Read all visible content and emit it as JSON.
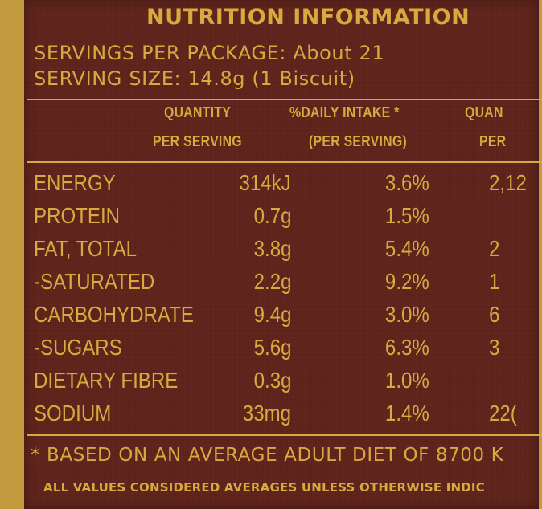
{
  "title": "NUTRITION INFORMATION",
  "servings_per_package": "SERVINGS PER PACKAGE: About 21",
  "serving_size": "SERVING SIZE: 14.8g (1 Biscuit)",
  "headers": {
    "qty_line1": "QUANTITY",
    "qty_line2": "PER SERVING",
    "di_line1": "%DAILY INTAKE *",
    "di_line2": "(PER SERVING)",
    "q2_line1": "QUAN",
    "q2_line2": "PER"
  },
  "rows": [
    {
      "name": "ENERGY",
      "qty": "314kJ",
      "di": "3.6%",
      "q2": "2,12"
    },
    {
      "name": "PROTEIN",
      "qty": "0.7g",
      "di": "1.5%",
      "q2": ""
    },
    {
      "name": "FAT, TOTAL",
      "qty": "3.8g",
      "di": "5.4%",
      "q2": "2"
    },
    {
      "name": "-SATURATED",
      "qty": "2.2g",
      "di": "9.2%",
      "q2": "1"
    },
    {
      "name": "CARBOHYDRATE",
      "qty": "9.4g",
      "di": "3.0%",
      "q2": "6"
    },
    {
      "name": "-SUGARS",
      "qty": "5.6g",
      "di": "6.3%",
      "q2": "3"
    },
    {
      "name": "DIETARY FIBRE",
      "qty": "0.3g",
      "di": "1.0%",
      "q2": ""
    },
    {
      "name": "SODIUM",
      "qty": "33mg",
      "di": "1.4%",
      "q2": "22("
    }
  ],
  "footnote_1": "* BASED ON AN AVERAGE ADULT DIET OF 8700 K",
  "footnote_2": "ALL VALUES CONSIDERED AVERAGES UNLESS OTHERWISE INDIC",
  "colors": {
    "panel": "#5e231b",
    "gold_text": "#d8a93f",
    "border": "#c49a3e"
  }
}
